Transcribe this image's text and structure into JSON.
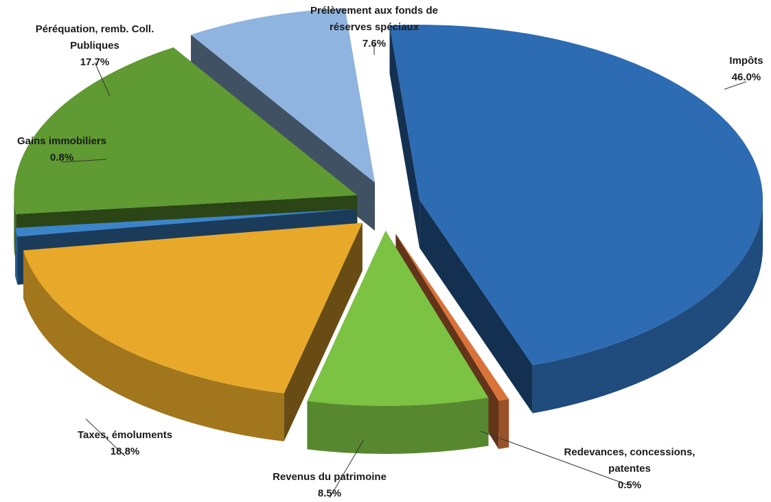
{
  "chart_data": {
    "type": "pie",
    "style": "3d-exploded",
    "slices": [
      {
        "label_lines": [
          "Impôts"
        ],
        "pct_text": "46.0%",
        "value": 46.0,
        "color": "#2d6bb3"
      },
      {
        "label_lines": [
          "Redevances, concessions,",
          "patentes"
        ],
        "pct_text": "0.5%",
        "value": 0.5,
        "color": "#d9733a"
      },
      {
        "label_lines": [
          "Revenus du patrimoine"
        ],
        "pct_text": "8.5%",
        "value": 8.5,
        "color": "#7cc243"
      },
      {
        "label_lines": [
          "Taxes, émoluments"
        ],
        "pct_text": "18.8%",
        "value": 18.8,
        "color": "#e8a92a"
      },
      {
        "label_lines": [
          "Gains immobiliers"
        ],
        "pct_text": "0.8%",
        "value": 0.8,
        "color": "#3c84c8"
      },
      {
        "label_lines": [
          "Péréquation, remb. Coll.",
          "Publiques"
        ],
        "pct_text": "17.7%",
        "value": 17.7,
        "color": "#5f9a32"
      },
      {
        "label_lines": [
          "Prélèvement aux fonds de",
          "réserves spéciaux"
        ],
        "pct_text": "7.6%",
        "value": 7.6,
        "color": "#8fb4df"
      }
    ]
  }
}
